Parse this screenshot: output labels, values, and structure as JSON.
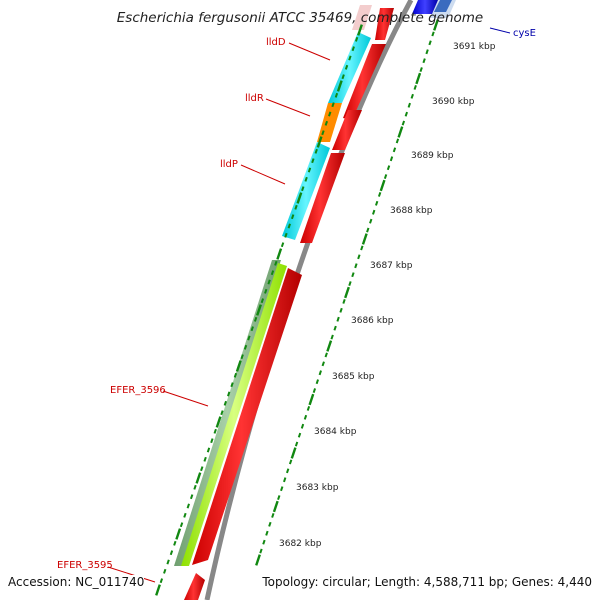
{
  "title": "Escherichia fergusonii ATCC 35469, complete genome",
  "footer": {
    "accession": "Accession: NC_011740",
    "summary": "Topology: circular; Length: 4,588,711 bp; Genes: 4,440"
  },
  "ticks": [
    {
      "label": "3691 kbp",
      "kbp": 3691
    },
    {
      "label": "3690 kbp",
      "kbp": 3690
    },
    {
      "label": "3689 kbp",
      "kbp": 3689
    },
    {
      "label": "3688 kbp",
      "kbp": 3688
    },
    {
      "label": "3687 kbp",
      "kbp": 3687
    },
    {
      "label": "3686 kbp",
      "kbp": 3686
    },
    {
      "label": "3685 kbp",
      "kbp": 3685
    },
    {
      "label": "3684 kbp",
      "kbp": 3684
    },
    {
      "label": "3683 kbp",
      "kbp": 3683
    },
    {
      "label": "3682 kbp",
      "kbp": 3682
    }
  ],
  "gene_labels": [
    {
      "name": "lldD",
      "color": "#cc0000"
    },
    {
      "name": "lldR",
      "color": "#cc0000"
    },
    {
      "name": "lldP",
      "color": "#cc0000"
    },
    {
      "name": "EFER_3596",
      "color": "#cc0000"
    },
    {
      "name": "EFER_3595",
      "color": "#cc0000"
    },
    {
      "name": "cysE",
      "color": "#0000aa"
    }
  ],
  "colors": {
    "cds_forward": "#ff0000",
    "cyan_feature": "#00e5f0",
    "orange_feature": "#ff8c00",
    "green_feature": "#8fbc8f",
    "lime_feature": "#adff2f",
    "backbone": "#888888",
    "tick_green": "#118811"
  }
}
